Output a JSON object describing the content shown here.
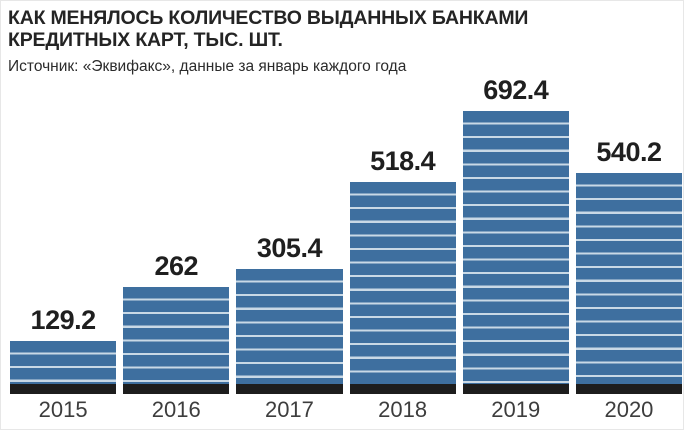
{
  "header": {
    "title_line1": "КАК МЕНЯЛОСЬ КОЛИЧЕСТВО ВЫДАННЫХ БАНКАМИ",
    "title_line2": "КРЕДИТНЫХ КАРТ, ТЫС. ШТ.",
    "source": "Источник: «Эквифакс», данные за январь каждого года"
  },
  "chart_data": {
    "type": "bar",
    "title": "КАК МЕНЯЛОСЬ КОЛИЧЕСТВО ВЫДАННЫХ БАНКАМИ КРЕДИТНЫХ КАРТ, ТЫС. ШТ.",
    "subtitle": "Источник: «Эквифакс», данные за январь каждого года",
    "units": "тыс. шт.",
    "categories": [
      "2015",
      "2016",
      "2017",
      "2018",
      "2019",
      "2020"
    ],
    "values": [
      129.2,
      262,
      305.4,
      518.4,
      692.4,
      540.2
    ],
    "value_labels": [
      "129.2",
      "262",
      "305.4",
      "518.4",
      "692.4",
      "540.2"
    ],
    "xlabel": "",
    "ylabel": "",
    "ylim": [
      0,
      700
    ],
    "grid": false,
    "legend": "none",
    "bar_color": "#3e6f9f",
    "bar_stripe_color": "#c9d9e6",
    "bar_base_color": "#1d1d1d"
  }
}
